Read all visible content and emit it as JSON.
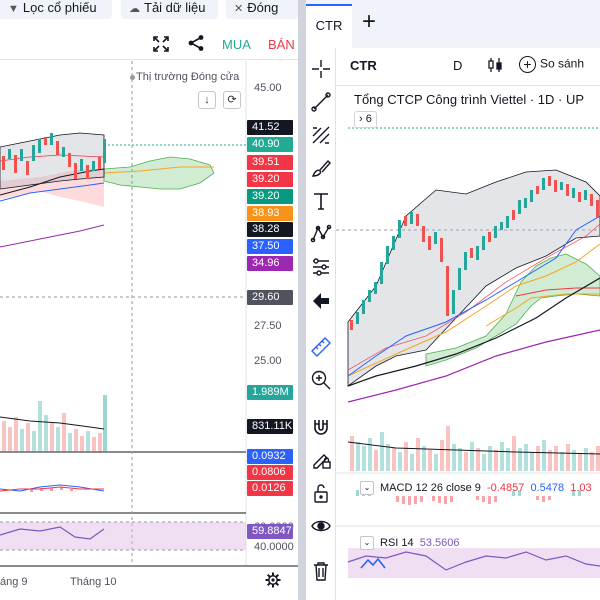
{
  "top_buttons": {
    "filter_label": "Lọc cổ phiếu",
    "download_label": "Tải dữ liệu",
    "close_label": "Đóng"
  },
  "left_toolbar": {
    "buy_label": "MUA",
    "sell_label": "BÁN"
  },
  "left_chart": {
    "market_status": "Thị trường Đóng cửa",
    "axis_labels": [
      "45.00",
      "27.50",
      "25.00",
      "60.0000",
      "40.0000"
    ],
    "price_tags": [
      {
        "text": "41.52",
        "color": "#131722"
      },
      {
        "text": "40.90",
        "color": "#22ab94"
      },
      {
        "text": "39.51",
        "color": "#f23645"
      },
      {
        "text": "39.20",
        "color": "#f23645"
      },
      {
        "text": "39.20",
        "color": "#089981"
      },
      {
        "text": "38.93",
        "color": "#f7931a"
      },
      {
        "text": "38.28",
        "color": "#131722"
      },
      {
        "text": "37.50",
        "color": "#2962ff"
      },
      {
        "text": "34.96",
        "color": "#9c27b0"
      },
      {
        "text": "29.60",
        "color": "#50535e"
      }
    ],
    "volume_tags": [
      {
        "text": "1.989M",
        "color": "#26a69a"
      },
      {
        "text": "831.11K",
        "color": "#131722"
      }
    ],
    "macd_tags": [
      {
        "text": "0.0932",
        "color": "#2962ff"
      },
      {
        "text": "0.0806",
        "color": "#f23645"
      },
      {
        "text": "0.0126",
        "color": "#f23645"
      }
    ],
    "rsi_tag": {
      "text": "59.8847",
      "color": "#7e57c2"
    },
    "time_labels": [
      "áng 9",
      "Tháng 10"
    ]
  },
  "right_tabs": {
    "active_tab": "CTR",
    "add_label": "+"
  },
  "right_header": {
    "symbol": "CTR",
    "interval": "D",
    "compare_label": "So sánh"
  },
  "right_chart": {
    "title": "Tổng CTCP Công trình Viettel · 1D · UP",
    "collapse_label": "6",
    "macd": {
      "name": "MACD 12 26 close 9",
      "value1": "-0.4857",
      "value2": "0.5478",
      "value3": "1.03"
    },
    "rsi": {
      "name": "RSI 14",
      "value": "53.5606"
    }
  },
  "colors": {
    "up": "#26a69a",
    "down": "#ef5350",
    "accent": "#2962ff"
  }
}
